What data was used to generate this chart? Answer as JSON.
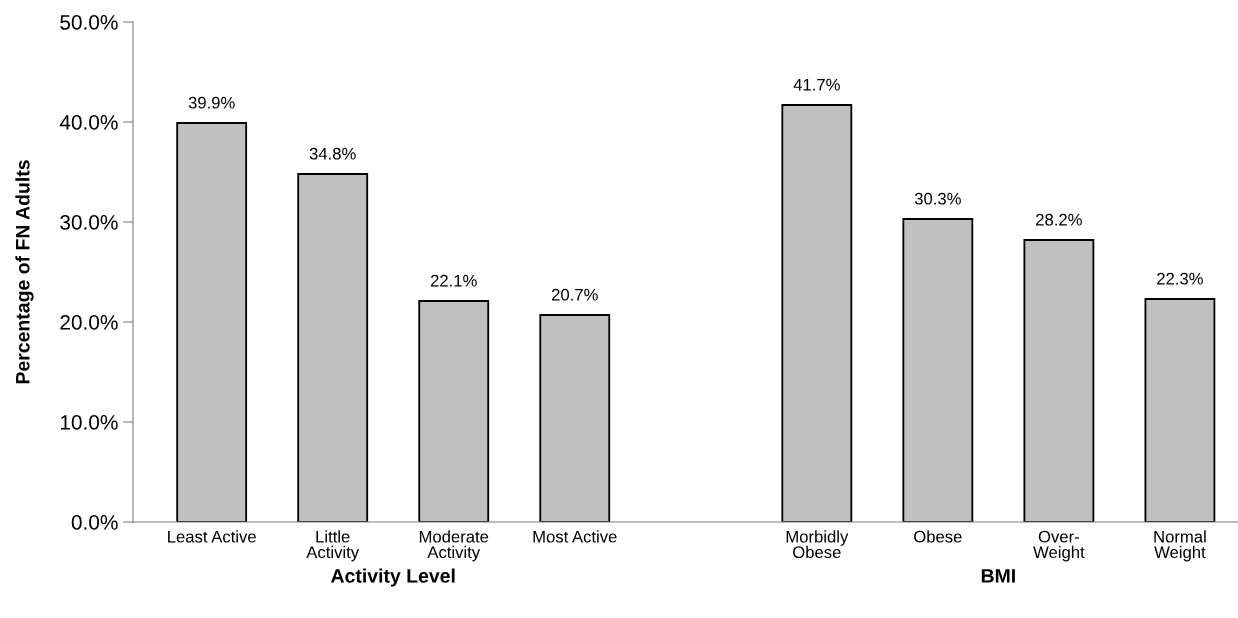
{
  "chart_data": {
    "type": "bar",
    "ylabel": "Percentage of FN Adults",
    "categories": [
      "Least Active",
      "Little\nActivity",
      "Moderate\nActivity",
      "Most Active",
      null,
      "Morbidly\nObese",
      "Obese",
      "Over-\nWeight",
      "Normal\nWeight"
    ],
    "values": [
      39.9,
      34.8,
      22.1,
      20.7,
      null,
      41.7,
      30.3,
      28.2,
      22.3
    ],
    "value_labels": [
      "39.9%",
      "34.8%",
      "22.1%",
      "20.7%",
      null,
      "41.7%",
      "30.3%",
      "28.2%",
      "22.3%"
    ],
    "color": "#c0c0c0",
    "ylim": [
      0,
      50
    ],
    "yticks": [
      {
        "value": 0,
        "label": "0.0%"
      },
      {
        "value": 10,
        "label": "10.0%"
      },
      {
        "value": 20,
        "label": "20.0%"
      },
      {
        "value": 30,
        "label": "30.0%"
      },
      {
        "value": 40,
        "label": "40.0%"
      },
      {
        "value": 50,
        "label": "50.0%"
      }
    ],
    "annotations": [
      "Activity Level",
      "BMI"
    ],
    "grid": false,
    "legend": false
  }
}
